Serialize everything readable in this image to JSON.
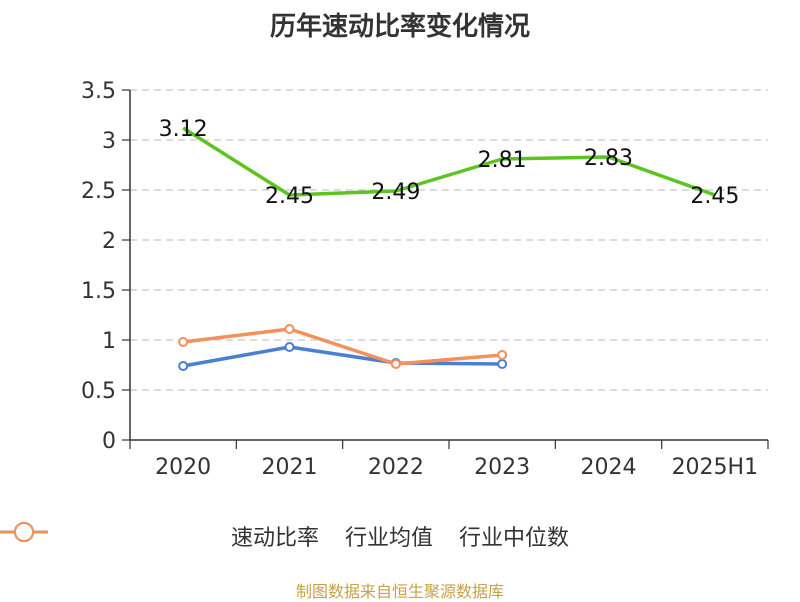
{
  "title": "历年速动比率变化情况",
  "source": "制图数据来自恒生聚源数据库",
  "chart_data": {
    "type": "line",
    "categories": [
      "2020",
      "2021",
      "2022",
      "2023",
      "2024",
      "2025H1"
    ],
    "ylim": [
      0,
      3.5
    ],
    "yticks": [
      "0",
      "0.5",
      "1",
      "1.5",
      "2",
      "2.5",
      "3",
      "3.5"
    ],
    "grid": true,
    "legend_position": "bottom",
    "series": [
      {
        "name": "速动比率",
        "color": "#5cc320",
        "values": [
          3.12,
          2.45,
          2.49,
          2.81,
          2.83,
          2.45
        ],
        "labels": [
          "3.12",
          "2.45",
          "2.49",
          "2.81",
          "2.83",
          "2.45"
        ],
        "show_labels": true,
        "markers": false
      },
      {
        "name": "行业均值",
        "color": "#4a7fd4",
        "values": [
          0.74,
          0.93,
          0.77,
          0.76,
          null,
          null
        ],
        "show_labels": false,
        "markers": true
      },
      {
        "name": "行业中位数",
        "color": "#f5905a",
        "values": [
          0.98,
          1.11,
          0.76,
          0.85,
          null,
          null
        ],
        "show_labels": false,
        "markers": true
      }
    ]
  }
}
